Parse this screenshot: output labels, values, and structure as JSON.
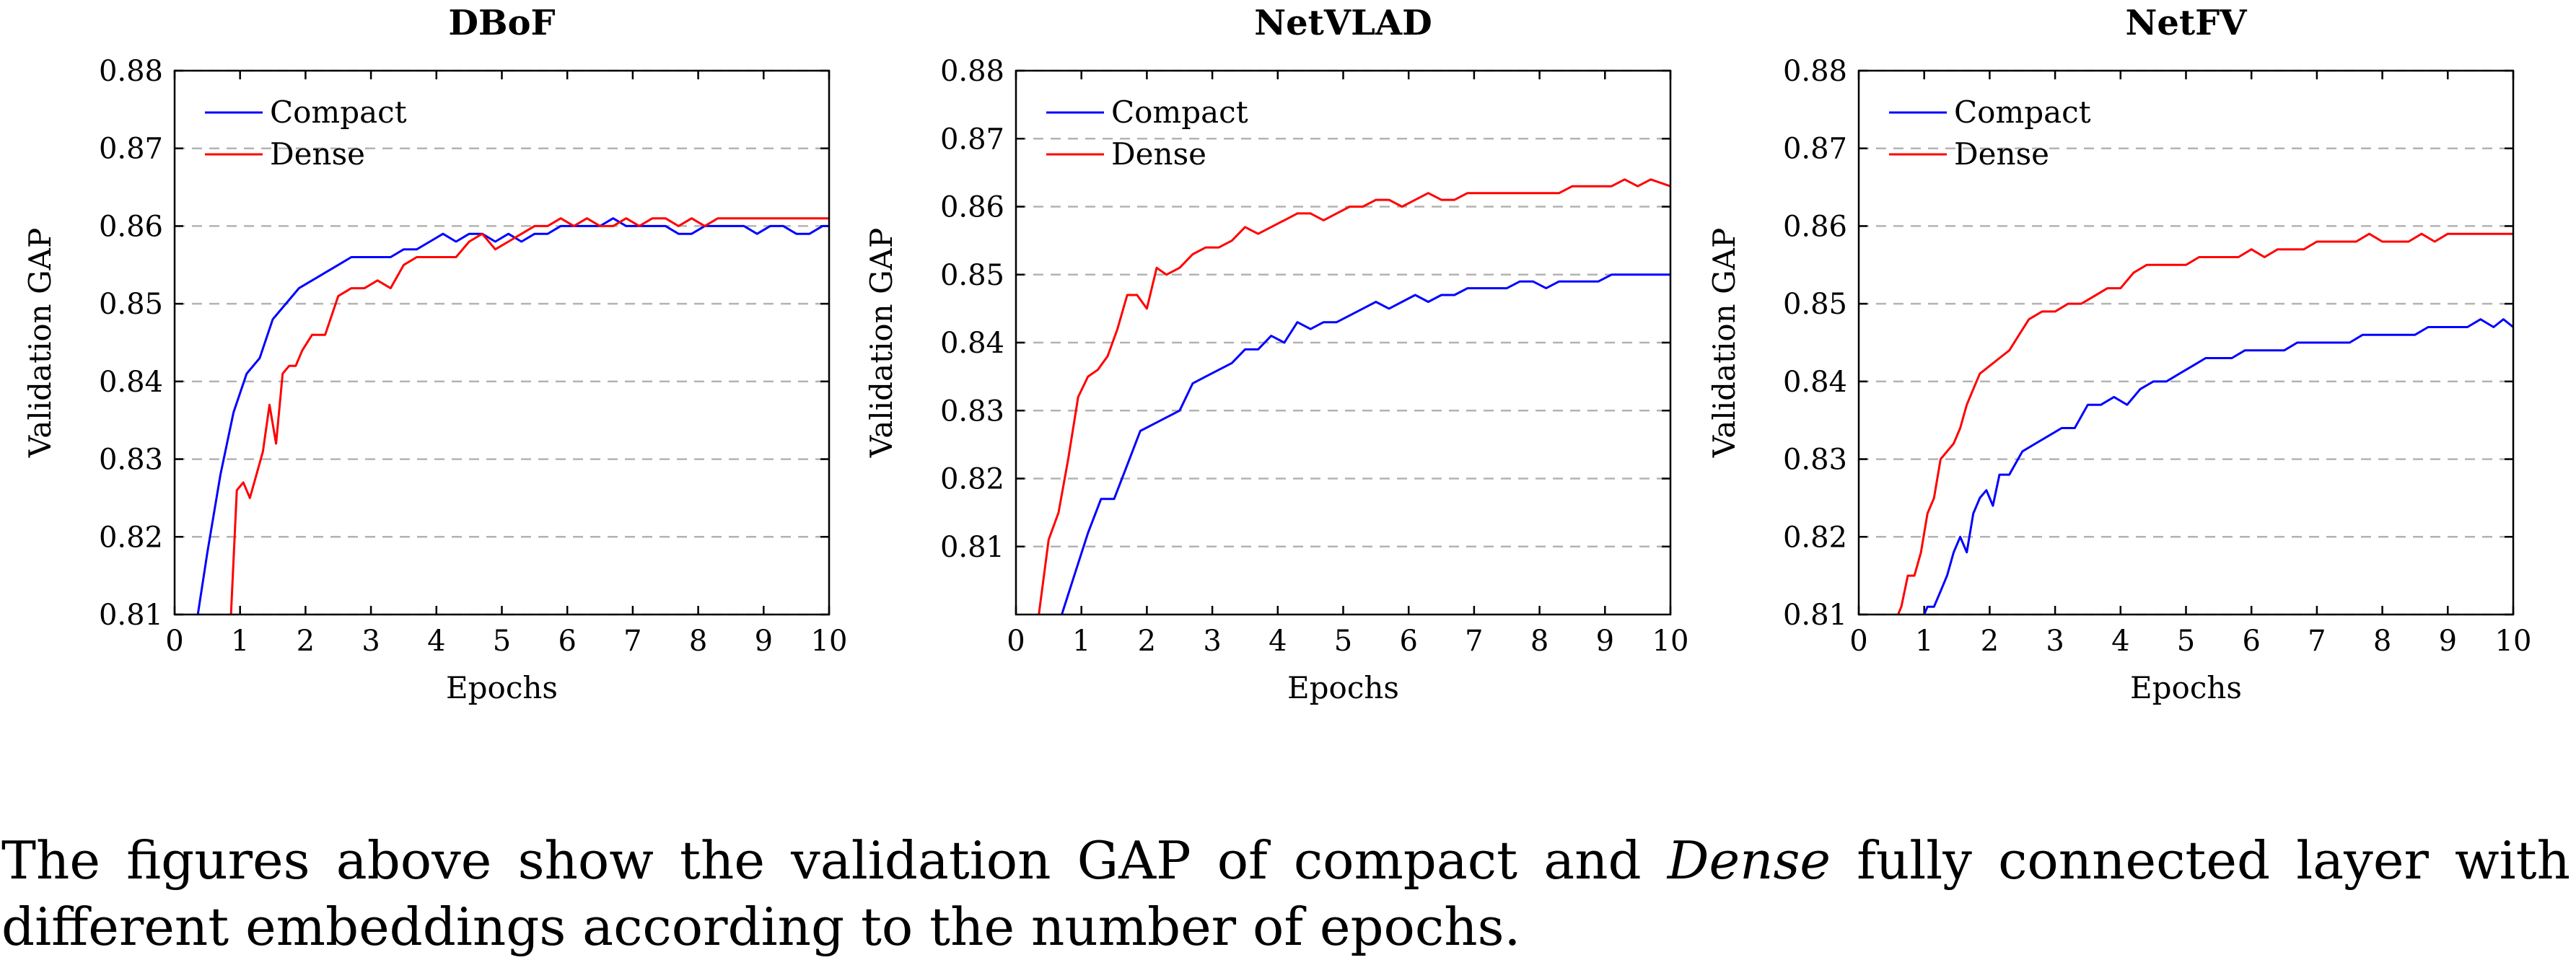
{
  "chart_data": [
    {
      "type": "line",
      "title": "DBoF",
      "xlabel": "Epochs",
      "ylabel": "Validation GAP",
      "xlim": [
        0,
        10
      ],
      "ylim": [
        0.81,
        0.88
      ],
      "xticks": [
        "0",
        "1",
        "2",
        "3",
        "4",
        "5",
        "6",
        "7",
        "8",
        "9",
        "10"
      ],
      "yticks": [
        "0.81",
        "0.82",
        "0.83",
        "0.84",
        "0.85",
        "0.86",
        "0.87",
        "0.88"
      ],
      "grid": "horizontal dashed",
      "legend_position": "top-left",
      "series": [
        {
          "name": "Compact",
          "color": "#0000ff",
          "x": [
            0.3,
            0.5,
            0.7,
            0.9,
            1.1,
            1.3,
            1.5,
            1.7,
            1.9,
            2.1,
            2.3,
            2.5,
            2.7,
            2.9,
            3.1,
            3.3,
            3.5,
            3.7,
            3.9,
            4.1,
            4.3,
            4.5,
            4.7,
            4.9,
            5.1,
            5.3,
            5.5,
            5.7,
            5.9,
            6.1,
            6.3,
            6.5,
            6.7,
            6.9,
            7.1,
            7.3,
            7.5,
            7.7,
            7.9,
            8.1,
            8.3,
            8.5,
            8.7,
            8.9,
            9.1,
            9.3,
            9.5,
            9.7,
            9.9,
            10.0
          ],
          "y": [
            0.807,
            0.818,
            0.828,
            0.836,
            0.841,
            0.843,
            0.848,
            0.85,
            0.852,
            0.853,
            0.854,
            0.855,
            0.856,
            0.856,
            0.856,
            0.856,
            0.857,
            0.857,
            0.858,
            0.859,
            0.858,
            0.859,
            0.859,
            0.858,
            0.859,
            0.858,
            0.859,
            0.859,
            0.86,
            0.86,
            0.86,
            0.86,
            0.861,
            0.86,
            0.86,
            0.86,
            0.86,
            0.859,
            0.859,
            0.86,
            0.86,
            0.86,
            0.86,
            0.859,
            0.86,
            0.86,
            0.859,
            0.859,
            0.86,
            0.86
          ]
        },
        {
          "name": "Dense",
          "color": "#ff0000",
          "x": [
            0.7,
            0.85,
            0.95,
            1.05,
            1.15,
            1.25,
            1.35,
            1.45,
            1.55,
            1.65,
            1.75,
            1.85,
            1.95,
            2.1,
            2.3,
            2.5,
            2.7,
            2.9,
            3.1,
            3.3,
            3.5,
            3.7,
            3.9,
            4.1,
            4.3,
            4.5,
            4.7,
            4.9,
            5.1,
            5.3,
            5.5,
            5.7,
            5.9,
            6.1,
            6.3,
            6.5,
            6.7,
            6.9,
            7.1,
            7.3,
            7.5,
            7.7,
            7.9,
            8.1,
            8.3,
            8.5,
            8.7,
            8.9,
            9.1,
            9.3,
            9.5,
            9.7,
            10.0
          ],
          "y": [
            0.801,
            0.808,
            0.826,
            0.827,
            0.825,
            0.828,
            0.831,
            0.837,
            0.832,
            0.841,
            0.842,
            0.842,
            0.844,
            0.846,
            0.846,
            0.851,
            0.852,
            0.852,
            0.853,
            0.852,
            0.855,
            0.856,
            0.856,
            0.856,
            0.856,
            0.858,
            0.859,
            0.857,
            0.858,
            0.859,
            0.86,
            0.86,
            0.861,
            0.86,
            0.861,
            0.86,
            0.86,
            0.861,
            0.86,
            0.861,
            0.861,
            0.86,
            0.861,
            0.86,
            0.861,
            0.861,
            0.861,
            0.861,
            0.861,
            0.861,
            0.861,
            0.861,
            0.861
          ]
        }
      ]
    },
    {
      "type": "line",
      "title": "NetVLAD",
      "xlabel": "Epochs",
      "ylabel": "Validation GAP",
      "xlim": [
        0,
        10
      ],
      "ylim": [
        0.8,
        0.88
      ],
      "xticks": [
        "0",
        "1",
        "2",
        "3",
        "4",
        "5",
        "6",
        "7",
        "8",
        "9",
        "10"
      ],
      "yticks": [
        "0.81",
        "0.82",
        "0.83",
        "0.84",
        "0.85",
        "0.86",
        "0.87",
        "0.88"
      ],
      "grid": "horizontal dashed",
      "legend_position": "top-left",
      "series": [
        {
          "name": "Compact",
          "color": "#0000ff",
          "x": [
            0.7,
            0.9,
            1.1,
            1.3,
            1.5,
            1.7,
            1.9,
            2.1,
            2.3,
            2.5,
            2.7,
            2.9,
            3.1,
            3.3,
            3.5,
            3.7,
            3.9,
            4.1,
            4.3,
            4.5,
            4.7,
            4.9,
            5.1,
            5.3,
            5.5,
            5.7,
            5.9,
            6.1,
            6.3,
            6.5,
            6.7,
            6.9,
            7.1,
            7.3,
            7.5,
            7.7,
            7.9,
            8.1,
            8.3,
            8.5,
            8.7,
            8.9,
            9.1,
            9.3,
            9.5,
            9.7,
            10.0
          ],
          "y": [
            0.8,
            0.806,
            0.812,
            0.817,
            0.817,
            0.822,
            0.827,
            0.828,
            0.829,
            0.83,
            0.834,
            0.835,
            0.836,
            0.837,
            0.839,
            0.839,
            0.841,
            0.84,
            0.843,
            0.842,
            0.843,
            0.843,
            0.844,
            0.845,
            0.846,
            0.845,
            0.846,
            0.847,
            0.846,
            0.847,
            0.847,
            0.848,
            0.848,
            0.848,
            0.848,
            0.849,
            0.849,
            0.848,
            0.849,
            0.849,
            0.849,
            0.849,
            0.85,
            0.85,
            0.85,
            0.85,
            0.85
          ]
        },
        {
          "name": "Dense",
          "color": "#ff0000",
          "x": [
            0.35,
            0.5,
            0.65,
            0.8,
            0.95,
            1.1,
            1.25,
            1.4,
            1.55,
            1.7,
            1.85,
            2.0,
            2.15,
            2.3,
            2.5,
            2.7,
            2.9,
            3.1,
            3.3,
            3.5,
            3.7,
            3.9,
            4.1,
            4.3,
            4.5,
            4.7,
            4.9,
            5.1,
            5.3,
            5.5,
            5.7,
            5.9,
            6.1,
            6.3,
            6.5,
            6.7,
            6.9,
            7.1,
            7.3,
            7.5,
            7.7,
            7.9,
            8.1,
            8.3,
            8.5,
            8.7,
            8.9,
            9.1,
            9.3,
            9.5,
            9.7,
            10.0
          ],
          "y": [
            0.8,
            0.811,
            0.815,
            0.823,
            0.832,
            0.835,
            0.836,
            0.838,
            0.842,
            0.847,
            0.847,
            0.845,
            0.851,
            0.85,
            0.851,
            0.853,
            0.854,
            0.854,
            0.855,
            0.857,
            0.856,
            0.857,
            0.858,
            0.859,
            0.859,
            0.858,
            0.859,
            0.86,
            0.86,
            0.861,
            0.861,
            0.86,
            0.861,
            0.862,
            0.861,
            0.861,
            0.862,
            0.862,
            0.862,
            0.862,
            0.862,
            0.862,
            0.862,
            0.862,
            0.863,
            0.863,
            0.863,
            0.863,
            0.864,
            0.863,
            0.864,
            0.863
          ]
        }
      ]
    },
    {
      "type": "line",
      "title": "NetFV",
      "xlabel": "Epochs",
      "ylabel": "Validation GAP",
      "xlim": [
        0,
        10
      ],
      "ylim": [
        0.81,
        0.88
      ],
      "xticks": [
        "0",
        "1",
        "2",
        "3",
        "4",
        "5",
        "6",
        "7",
        "8",
        "9",
        "10"
      ],
      "yticks": [
        "0.81",
        "0.82",
        "0.83",
        "0.84",
        "0.85",
        "0.86",
        "0.87",
        "0.88"
      ],
      "grid": "horizontal dashed",
      "legend_position": "top-left",
      "series": [
        {
          "name": "Compact",
          "color": "#0000ff",
          "x": [
            0.95,
            1.05,
            1.15,
            1.25,
            1.35,
            1.45,
            1.55,
            1.65,
            1.75,
            1.85,
            1.95,
            2.05,
            2.15,
            2.3,
            2.5,
            2.7,
            2.9,
            3.1,
            3.3,
            3.5,
            3.7,
            3.9,
            4.1,
            4.3,
            4.5,
            4.7,
            4.9,
            5.1,
            5.3,
            5.5,
            5.7,
            5.9,
            6.1,
            6.3,
            6.5,
            6.7,
            6.9,
            7.1,
            7.3,
            7.5,
            7.7,
            7.9,
            8.1,
            8.3,
            8.5,
            8.7,
            8.9,
            9.1,
            9.3,
            9.5,
            9.7,
            9.85,
            10.0
          ],
          "y": [
            0.809,
            0.811,
            0.811,
            0.813,
            0.815,
            0.818,
            0.82,
            0.818,
            0.823,
            0.825,
            0.826,
            0.824,
            0.828,
            0.828,
            0.831,
            0.832,
            0.833,
            0.834,
            0.834,
            0.837,
            0.837,
            0.838,
            0.837,
            0.839,
            0.84,
            0.84,
            0.841,
            0.842,
            0.843,
            0.843,
            0.843,
            0.844,
            0.844,
            0.844,
            0.844,
            0.845,
            0.845,
            0.845,
            0.845,
            0.845,
            0.846,
            0.846,
            0.846,
            0.846,
            0.846,
            0.847,
            0.847,
            0.847,
            0.847,
            0.848,
            0.847,
            0.848,
            0.847
          ]
        },
        {
          "name": "Dense",
          "color": "#ff0000",
          "x": [
            0.55,
            0.65,
            0.75,
            0.85,
            0.95,
            1.05,
            1.15,
            1.25,
            1.35,
            1.45,
            1.55,
            1.65,
            1.75,
            1.85,
            2.0,
            2.15,
            2.3,
            2.45,
            2.6,
            2.8,
            3.0,
            3.2,
            3.4,
            3.6,
            3.8,
            4.0,
            4.2,
            4.4,
            4.6,
            4.8,
            5.0,
            5.2,
            5.4,
            5.6,
            5.8,
            6.0,
            6.2,
            6.4,
            6.6,
            6.8,
            7.0,
            7.2,
            7.4,
            7.6,
            7.8,
            8.0,
            8.2,
            8.4,
            8.6,
            8.8,
            9.0,
            9.2,
            9.4,
            9.6,
            9.8,
            10.0
          ],
          "y": [
            0.809,
            0.811,
            0.815,
            0.815,
            0.818,
            0.823,
            0.825,
            0.83,
            0.831,
            0.832,
            0.834,
            0.837,
            0.839,
            0.841,
            0.842,
            0.843,
            0.844,
            0.846,
            0.848,
            0.849,
            0.849,
            0.85,
            0.85,
            0.851,
            0.852,
            0.852,
            0.854,
            0.855,
            0.855,
            0.855,
            0.855,
            0.856,
            0.856,
            0.856,
            0.856,
            0.857,
            0.856,
            0.857,
            0.857,
            0.857,
            0.858,
            0.858,
            0.858,
            0.858,
            0.859,
            0.858,
            0.858,
            0.858,
            0.859,
            0.858,
            0.859,
            0.859,
            0.859,
            0.859,
            0.859,
            0.859
          ]
        }
      ]
    }
  ],
  "caption": {
    "part1": "The figures above show the validation GAP of compact and ",
    "emph": "Dense",
    "part2": " fully connected layer with different embeddings according to the number of epochs."
  }
}
